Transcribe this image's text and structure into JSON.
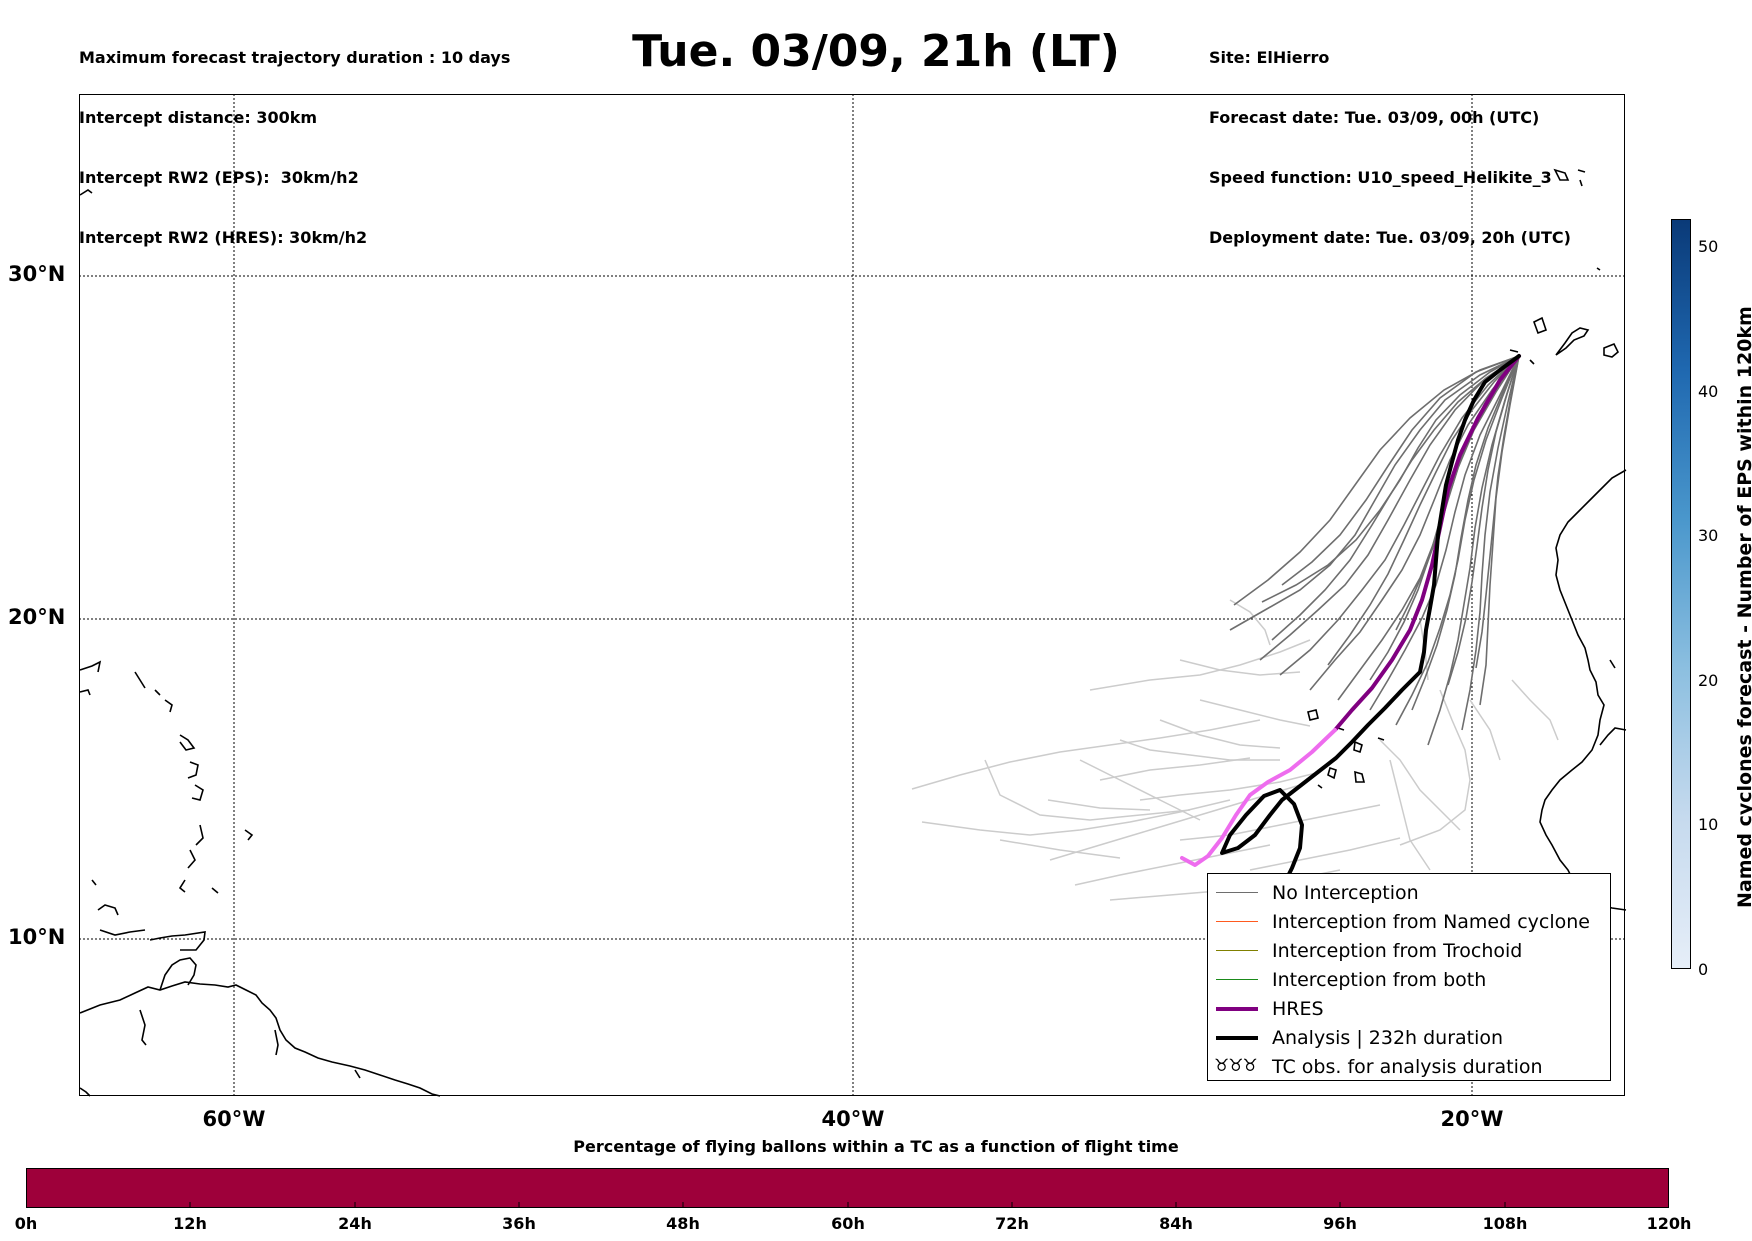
{
  "header": {
    "left": [
      "Maximum forecast trajectory duration : 10 days",
      "Intercept distance: 300km",
      "Intercept RW2 (EPS):  30km/h2",
      "Intercept RW2 (HRES): 30km/h2"
    ],
    "title": "Tue. 03/09, 21h (LT)",
    "right": [
      "Site: ElHierro",
      "Forecast date: Tue. 03/09, 00h (UTC)",
      "Speed function: U10_speed_Helikite_3",
      "Deployment date: Tue. 03/09, 20h (UTC)"
    ]
  },
  "map": {
    "lat_labels": [
      "30°N",
      "20°N",
      "10°N"
    ],
    "lon_labels": [
      "60°W",
      "40°W",
      "20°W"
    ],
    "lon_range": [
      -65,
      -15
    ],
    "lat_range": [
      5,
      35
    ],
    "gridlines": true,
    "colors": {
      "no_interception": "#6e6e6e",
      "eps_faded": "#cccccc",
      "named_cyclone": "#ff5a1f",
      "trochoid": "#808000",
      "both": "#1a8a1a",
      "hres": "#800080",
      "hres_faded": "#ee6cee",
      "analysis": "#000000"
    }
  },
  "legend": {
    "items": [
      {
        "label": "No Interception",
        "style": "thin-gray"
      },
      {
        "label": "Interception from Named cyclone",
        "style": "thin-orange"
      },
      {
        "label": "Interception from Trochoid",
        "style": "thin-olive"
      },
      {
        "label": "Interception from both",
        "style": "thin-green"
      },
      {
        "label": "HRES",
        "style": "thick-purple"
      },
      {
        "label": "Analysis | 232h duration",
        "style": "thick-black"
      },
      {
        "label": "TC obs. for analysis duration",
        "style": "tc-symbol",
        "symbol": "♉♉♉"
      }
    ]
  },
  "colorbar_right": {
    "label": "Named cyclones forecast - Number of EPS within 120km",
    "ticks": [
      "50",
      "40",
      "30",
      "20",
      "10",
      "0"
    ],
    "range": [
      0,
      52
    ],
    "color_low": "#e6eef8",
    "color_high": "#0a3a78"
  },
  "colorbar_bottom": {
    "title": "Percentage of flying ballons within a TC as a function of flight time",
    "ticks": [
      "0h",
      "12h",
      "24h",
      "36h",
      "48h",
      "60h",
      "72h",
      "84h",
      "96h",
      "108h",
      "120h"
    ],
    "fill_color": "#9e003a"
  }
}
